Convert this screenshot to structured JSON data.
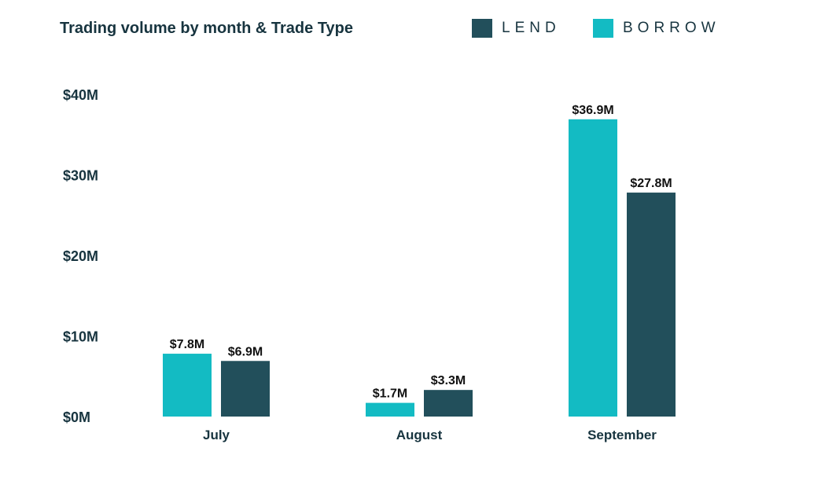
{
  "chart_data": {
    "type": "bar",
    "title": "Trading volume by month & Trade Type",
    "categories": [
      "July",
      "August",
      "September"
    ],
    "series": [
      {
        "name": "BORROW",
        "color": "#13bbc3",
        "values": [
          7.8,
          1.7,
          36.9
        ],
        "labels": [
          "$7.8M",
          "$1.7M",
          "$36.9M"
        ]
      },
      {
        "name": "LEND",
        "color": "#224f5b",
        "values": [
          6.9,
          3.3,
          27.8
        ],
        "labels": [
          "$6.9M",
          "$3.3M",
          "$27.8M"
        ]
      }
    ],
    "yticks": [
      0,
      10,
      20,
      30,
      40
    ],
    "ytick_labels": [
      "$0M",
      "$10M",
      "$20M",
      "$30M",
      "$40M"
    ],
    "ylim": [
      0,
      40
    ],
    "xlabel": "",
    "ylabel": "",
    "grid": false,
    "legend_position": "top-right",
    "legend_order": [
      "LEND",
      "BORROW"
    ]
  }
}
